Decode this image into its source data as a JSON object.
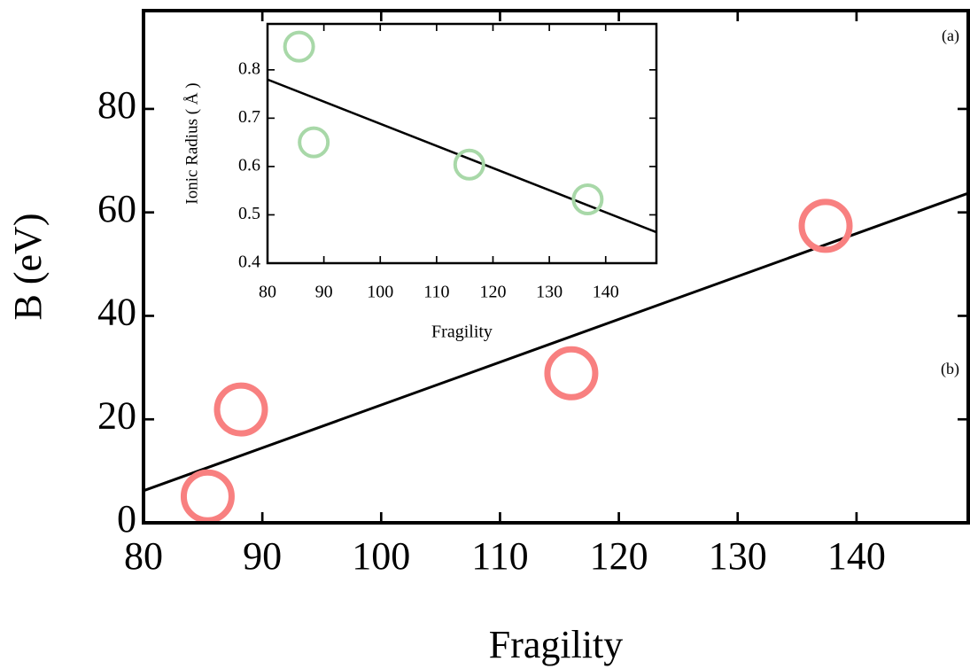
{
  "chart_data": [
    {
      "type": "scatter",
      "xlabel": "Fragility",
      "ylabel": "B (eV)",
      "annotations": [
        "(a)",
        "(b)"
      ],
      "points": {
        "color": "#f88080",
        "x": [
          85.4,
          88.2,
          116.0,
          137.4
        ],
        "values": [
          5.1,
          21.9,
          28.9,
          57.4
        ]
      },
      "fit": {
        "color": "#000000",
        "x": [
          80,
          149.4
        ],
        "values": [
          6.2,
          63.7
        ]
      },
      "xlim": [
        80,
        149.4
      ],
      "ylim": [
        0,
        99
      ],
      "xticks": [
        80,
        90,
        100,
        110,
        120,
        130,
        140
      ],
      "yticks": [
        0,
        20,
        40,
        60,
        80
      ]
    },
    {
      "type": "scatter",
      "xlabel": "Fragility",
      "ylabel": "Ionic Radius ( Å )",
      "points": {
        "color": "#a8d8a8",
        "x": [
          85.6,
          88.2,
          115.8,
          136.8
        ],
        "values": [
          0.848,
          0.65,
          0.604,
          0.532
        ]
      },
      "fit": {
        "color": "#000000",
        "x": [
          80,
          149
        ],
        "values": [
          0.78,
          0.464
        ]
      },
      "xlim": [
        80,
        149
      ],
      "ylim": [
        0.4,
        0.895
      ],
      "xticks": [
        80,
        90,
        100,
        110,
        120,
        130,
        140
      ],
      "yticks": [
        0.4,
        0.5,
        0.6,
        0.7,
        0.8
      ]
    }
  ]
}
